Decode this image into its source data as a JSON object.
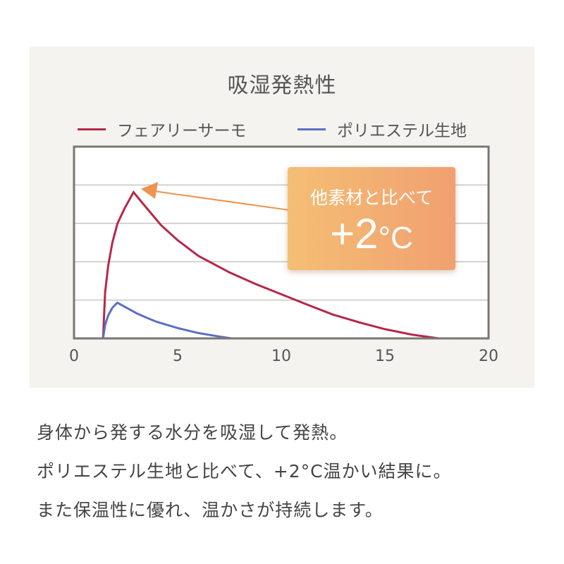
{
  "chart_data": {
    "type": "line",
    "title": "吸湿発熱性",
    "xlabel": "",
    "ylabel": "",
    "xlim": [
      0,
      20
    ],
    "ylim": [
      0,
      5
    ],
    "x_ticks": [
      "0",
      "5",
      "10",
      "15",
      "20"
    ],
    "y_grid_lines": [
      1,
      2,
      3,
      4
    ],
    "grid": true,
    "legend_position": "top",
    "series": [
      {
        "name": "フェアリーサーモ",
        "color": "#b5284a",
        "points": [
          [
            1.4,
            0
          ],
          [
            1.5,
            1.2
          ],
          [
            1.65,
            1.9
          ],
          [
            1.85,
            2.5
          ],
          [
            2.1,
            3.0
          ],
          [
            2.45,
            3.4
          ],
          [
            2.87,
            3.81
          ],
          [
            3.5,
            3.4
          ],
          [
            4.2,
            2.95
          ],
          [
            5,
            2.56
          ],
          [
            6,
            2.15
          ],
          [
            7.5,
            1.72
          ],
          [
            8.75,
            1.42
          ],
          [
            10,
            1.15
          ],
          [
            11.25,
            0.88
          ],
          [
            12.5,
            0.62
          ],
          [
            13.75,
            0.42
          ],
          [
            15,
            0.24
          ],
          [
            16.3,
            0.1
          ],
          [
            17.6,
            0
          ]
        ]
      },
      {
        "name": "ポリエステル生地",
        "color": "#5a6fc4",
        "points": [
          [
            1.4,
            0
          ],
          [
            1.5,
            0.35
          ],
          [
            1.65,
            0.6
          ],
          [
            1.85,
            0.8
          ],
          [
            2.09,
            0.93
          ],
          [
            2.6,
            0.78
          ],
          [
            3,
            0.66
          ],
          [
            3.5,
            0.54
          ],
          [
            4,
            0.43
          ],
          [
            5,
            0.27
          ],
          [
            6,
            0.14
          ],
          [
            7,
            0.05
          ],
          [
            7.6,
            0
          ]
        ]
      }
    ],
    "annotation": {
      "line1": "他素材と比べて",
      "value": "+2",
      "unit": "°C",
      "arrow_color": "#ee9350",
      "box_colors": [
        "#f4be74",
        "#f1a070"
      ],
      "points_to_x": 2.87
    }
  },
  "description_lines": [
    "身体から発する水分を吸湿して発熱。",
    "ポリエステル生地と比べて、+2°C温かい結果に。",
    "また保温性に優れ、温かさが持続します。"
  ]
}
